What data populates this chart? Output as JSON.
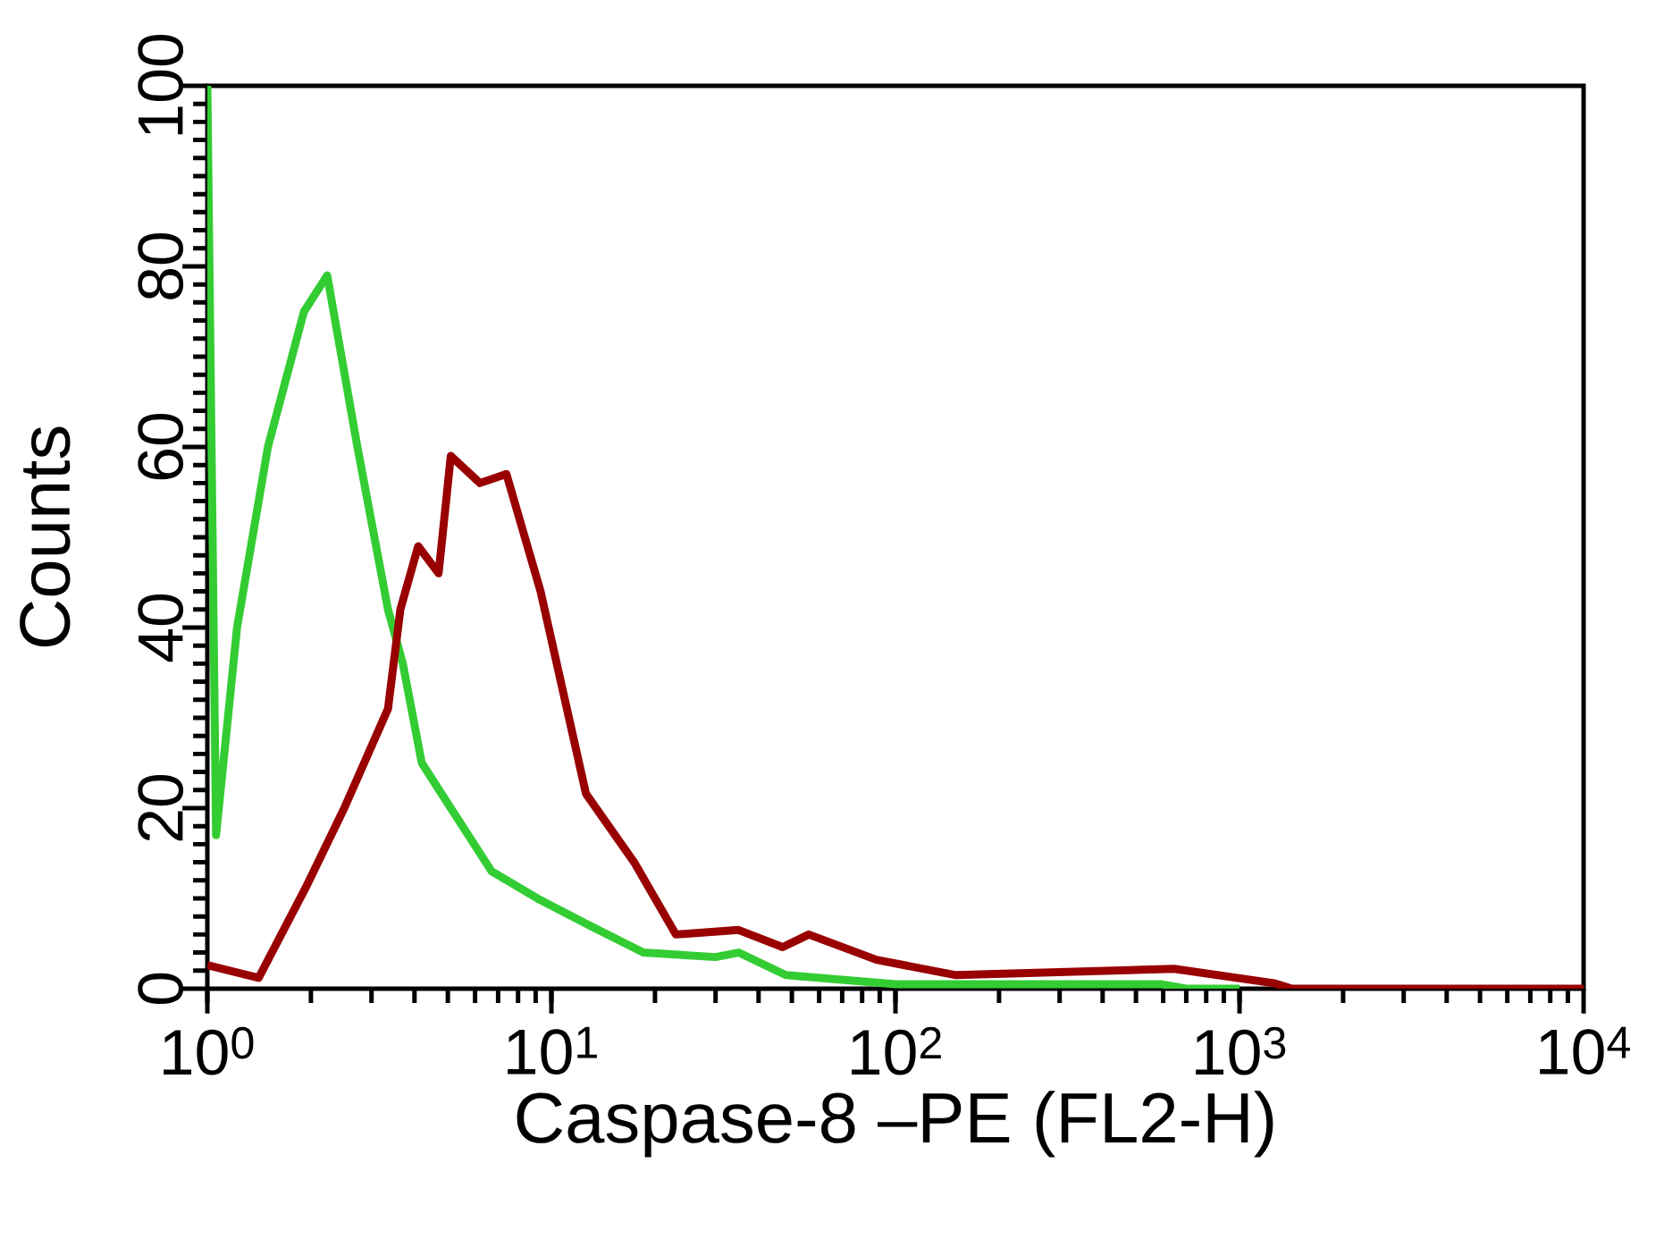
{
  "chart_data": {
    "type": "line",
    "xlabel": "Caspase-8 –PE (FL2-H)",
    "ylabel": "Counts",
    "log": "x",
    "xlim": [
      1,
      10000
    ],
    "ylim": [
      0,
      100
    ],
    "xticks": [
      {
        "value": 1,
        "label": "10$^{0}$"
      },
      {
        "value": 10,
        "label": "10$^{1}$"
      },
      {
        "value": 100,
        "label": "10$^{2}$"
      },
      {
        "value": 1000,
        "label": "10$^{3}$"
      },
      {
        "value": 10000,
        "label": "10$^{4}$"
      }
    ],
    "yticks": [
      0,
      20,
      40,
      60,
      80,
      100
    ],
    "grid": false,
    "marker": "none",
    "line_style": "solid",
    "series": [
      {
        "color": "#33cc33",
        "x": [
          1.0,
          1.06,
          1.22,
          1.5,
          1.91,
          2.23,
          2.73,
          3.35,
          3.7,
          4.2,
          5.1,
          6.7,
          9.1,
          12.9,
          18.5,
          30,
          35,
          48,
          100,
          300,
          590,
          700,
          1000
        ],
        "values": [
          100,
          17,
          40,
          60,
          75,
          79,
          60,
          42,
          36,
          25,
          20,
          13,
          10,
          7,
          4,
          3.5,
          4,
          1.5,
          0.5,
          0.5,
          0.5,
          0,
          0
        ]
      },
      {
        "color": "#990000",
        "x": [
          1.0,
          1.41,
          1.95,
          2.5,
          3.35,
          3.64,
          4.1,
          4.7,
          5.1,
          6.2,
          7.4,
          9.3,
          12.6,
          17.4,
          23,
          35,
          47,
          56,
          88,
          150,
          645,
          1260,
          1420,
          10000
        ],
        "values": [
          2.6,
          1.2,
          11.5,
          20,
          31,
          42,
          49,
          46,
          59,
          56,
          57,
          44,
          21.6,
          14,
          6,
          6.5,
          4.6,
          6,
          3.2,
          1.5,
          2.2,
          0.6,
          0,
          0
        ]
      }
    ]
  }
}
